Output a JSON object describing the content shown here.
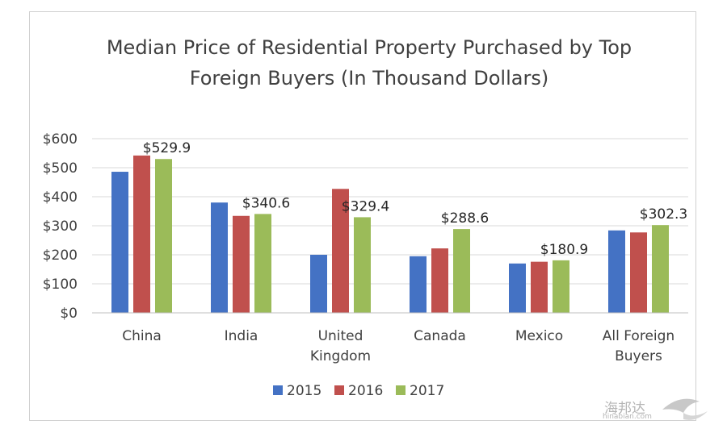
{
  "chart_data": {
    "type": "bar",
    "title_lines": [
      "Median Price of Residential Property Purchased by Top",
      "Foreign Buyers (In Thousand Dollars)"
    ],
    "categories": [
      [
        "China"
      ],
      [
        "India"
      ],
      [
        "United",
        "Kingdom"
      ],
      [
        "Canada"
      ],
      [
        "Mexico"
      ],
      [
        "All Foreign",
        "Buyers"
      ]
    ],
    "series": [
      {
        "name": "2015",
        "color": "#4472c4",
        "values": [
          486,
          380,
          200,
          195,
          170,
          284
        ]
      },
      {
        "name": "2016",
        "color": "#c0504d",
        "values": [
          542,
          334,
          427,
          222,
          176,
          277
        ]
      },
      {
        "name": "2017",
        "color": "#9bbb59",
        "values": [
          529.9,
          340.6,
          329.4,
          288.6,
          180.9,
          302.3
        ]
      }
    ],
    "data_labels": [
      "$529.9",
      "$340.6",
      "$329.4",
      "$288.6",
      "$180.9",
      "$302.3"
    ],
    "data_label_series": "2017",
    "y_ticks": [
      "$0",
      "$100",
      "$200",
      "$300",
      "$400",
      "$500",
      "$600"
    ],
    "ylim": [
      0,
      600
    ],
    "grid": true,
    "legend_position": "bottom"
  },
  "watermark": {
    "brand": "海邦达",
    "url": "hinabian.com"
  }
}
